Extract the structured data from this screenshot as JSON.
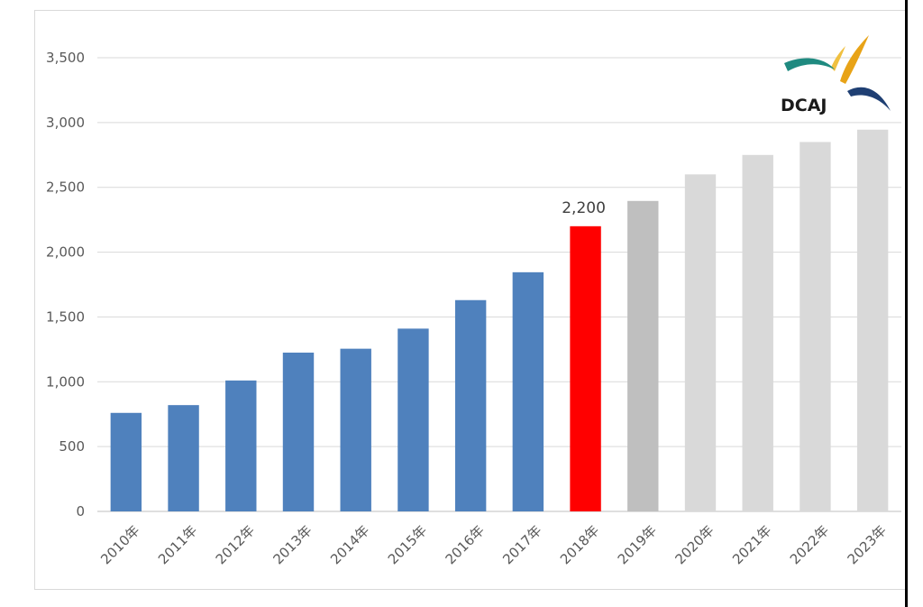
{
  "chart_data": {
    "type": "bar",
    "categories": [
      "2010年",
      "2011年",
      "2012年",
      "2013年",
      "2014年",
      "2015年",
      "2016年",
      "2017年",
      "2018年",
      "2019年",
      "2020年",
      "2021年",
      "2022年",
      "2023年"
    ],
    "values": [
      760,
      820,
      1010,
      1225,
      1255,
      1410,
      1630,
      1845,
      2200,
      2395,
      2600,
      2750,
      2850,
      2945
    ],
    "bar_colors": [
      "#4f81bd",
      "#4f81bd",
      "#4f81bd",
      "#4f81bd",
      "#4f81bd",
      "#4f81bd",
      "#4f81bd",
      "#4f81bd",
      "#ff0000",
      "#bfbfbf",
      "#d9d9d9",
      "#d9d9d9",
      "#d9d9d9",
      "#d9d9d9"
    ],
    "data_labels": [
      {
        "category": "2018年",
        "text": "2,200"
      }
    ],
    "y_ticks": [
      "0",
      "500",
      "1,000",
      "1,500",
      "2,000",
      "2,500",
      "3,000",
      "3,500"
    ],
    "ylim": [
      0,
      3500
    ],
    "grid": true,
    "title": "",
    "xlabel": "",
    "ylabel": ""
  },
  "logo": {
    "text": "DCAJ",
    "colors": {
      "gold": "#e8a317",
      "teal": "#1f8a80",
      "navy": "#1f3f73"
    }
  }
}
